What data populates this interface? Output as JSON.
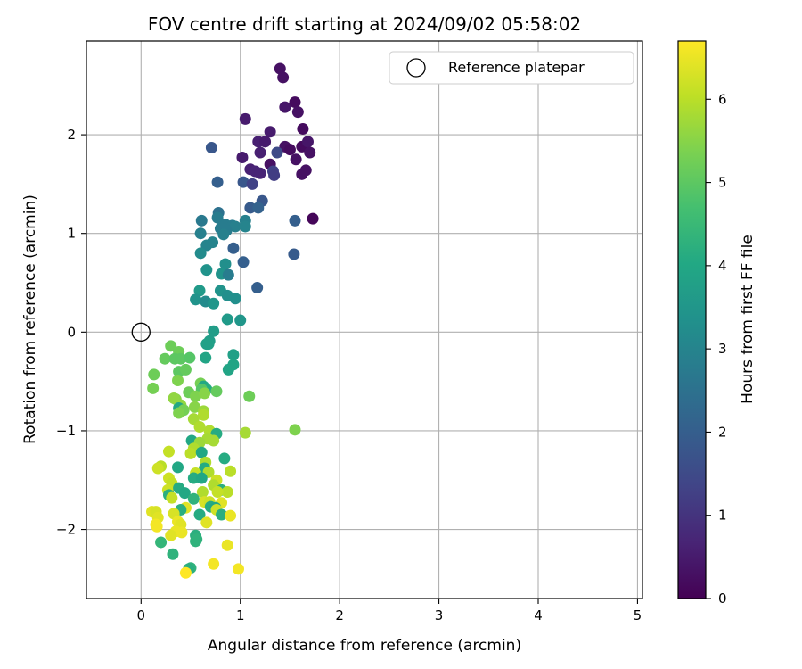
{
  "chart_data": {
    "type": "scatter",
    "title": "FOV centre drift starting at 2024/09/02 05:58:02",
    "xlabel": "Angular distance from reference (arcmin)",
    "ylabel": "Rotation from reference (arcmin)",
    "colorbar_label": "Hours from first FF file",
    "xlim": [
      -0.55,
      5.05
    ],
    "ylim": [
      -2.7,
      2.95
    ],
    "x_ticks": [
      0,
      1,
      2,
      3,
      4,
      5
    ],
    "x_tick_labels": [
      "0",
      "1",
      "2",
      "3",
      "4",
      "5"
    ],
    "y_ticks": [
      -2,
      -1,
      0,
      1,
      2
    ],
    "y_tick_labels": [
      "−2",
      "−1",
      "0",
      "1",
      "2"
    ],
    "colorbar_range": [
      0,
      6.7
    ],
    "colorbar_ticks": [
      0,
      1,
      2,
      3,
      4,
      5,
      6
    ],
    "colorbar_tick_labels": [
      "0",
      "1",
      "2",
      "3",
      "4",
      "5",
      "6"
    ],
    "colormap": "viridis",
    "grid": true,
    "legend": {
      "position": "top-right",
      "entries": [
        "Reference platepar"
      ]
    },
    "reference_point": {
      "x": 0,
      "y": 0
    },
    "points": [
      [
        1.4,
        2.67,
        0.3
      ],
      [
        1.43,
        2.58,
        0.3
      ],
      [
        1.45,
        2.28,
        0.4
      ],
      [
        1.55,
        2.33,
        0.2
      ],
      [
        1.58,
        2.23,
        0.3
      ],
      [
        1.05,
        2.16,
        0.5
      ],
      [
        1.63,
        2.06,
        0.2
      ],
      [
        1.3,
        2.03,
        0.5
      ],
      [
        1.18,
        1.93,
        0.6
      ],
      [
        1.25,
        1.93,
        0.5
      ],
      [
        1.45,
        1.88,
        0.3
      ],
      [
        1.5,
        1.85,
        0.2
      ],
      [
        1.62,
        1.88,
        0.2
      ],
      [
        1.68,
        1.93,
        0.4
      ],
      [
        0.71,
        1.87,
        1.8
      ],
      [
        1.37,
        1.82,
        1.5
      ],
      [
        1.2,
        1.82,
        0.6
      ],
      [
        1.02,
        1.77,
        0.5
      ],
      [
        1.56,
        1.75,
        0.3
      ],
      [
        1.7,
        1.82,
        0.3
      ],
      [
        1.3,
        1.7,
        0.3
      ],
      [
        1.1,
        1.65,
        0.6
      ],
      [
        1.15,
        1.63,
        0.7
      ],
      [
        1.2,
        1.61,
        0.7
      ],
      [
        1.33,
        1.63,
        1.3
      ],
      [
        1.34,
        1.59,
        1.2
      ],
      [
        1.62,
        1.6,
        0.3
      ],
      [
        1.66,
        1.64,
        0.3
      ],
      [
        1.03,
        1.52,
        1.8
      ],
      [
        1.12,
        1.5,
        1.3
      ],
      [
        0.77,
        1.52,
        2.0
      ],
      [
        1.22,
        1.33,
        1.8
      ],
      [
        1.1,
        1.26,
        1.9
      ],
      [
        1.18,
        1.26,
        2.1
      ],
      [
        0.78,
        1.21,
        2.5
      ],
      [
        0.61,
        1.13,
        2.7
      ],
      [
        0.77,
        1.16,
        2.8
      ],
      [
        1.05,
        1.13,
        2.9
      ],
      [
        1.55,
        1.13,
        2.0
      ],
      [
        1.73,
        1.15,
        0.1
      ],
      [
        0.85,
        1.09,
        2.8
      ],
      [
        0.92,
        1.08,
        2.8
      ],
      [
        0.95,
        1.07,
        2.9
      ],
      [
        1.05,
        1.07,
        3.0
      ],
      [
        0.86,
        1.03,
        2.8
      ],
      [
        0.8,
        1.05,
        2.8
      ],
      [
        0.6,
        1.0,
        2.9
      ],
      [
        0.83,
        0.99,
        2.9
      ],
      [
        0.72,
        0.91,
        3.0
      ],
      [
        0.66,
        0.88,
        3.0
      ],
      [
        0.93,
        0.85,
        2.0
      ],
      [
        0.6,
        0.8,
        3.2
      ],
      [
        1.54,
        0.79,
        1.9
      ],
      [
        1.03,
        0.71,
        2.0
      ],
      [
        0.85,
        0.69,
        3.3
      ],
      [
        0.66,
        0.63,
        3.4
      ],
      [
        0.81,
        0.59,
        3.4
      ],
      [
        0.88,
        0.58,
        2.8
      ],
      [
        1.17,
        0.45,
        2.0
      ],
      [
        0.59,
        0.42,
        3.6
      ],
      [
        0.8,
        0.42,
        3.4
      ],
      [
        0.87,
        0.37,
        3.3
      ],
      [
        0.55,
        0.33,
        3.4
      ],
      [
        0.95,
        0.34,
        3.3
      ],
      [
        0.65,
        0.31,
        3.2
      ],
      [
        0.73,
        0.29,
        3.5
      ],
      [
        0.87,
        0.13,
        3.6
      ],
      [
        1.0,
        0.12,
        3.5
      ],
      [
        0.73,
        0.01,
        3.7
      ],
      [
        0.69,
        -0.09,
        3.7
      ],
      [
        0.66,
        -0.12,
        3.8
      ],
      [
        0.68,
        -0.12,
        3.8
      ],
      [
        0.93,
        -0.23,
        3.8
      ],
      [
        0.3,
        -0.14,
        5.2
      ],
      [
        0.38,
        -0.2,
        5.2
      ],
      [
        0.24,
        -0.27,
        5.1
      ],
      [
        0.34,
        -0.27,
        5.0
      ],
      [
        0.4,
        -0.27,
        5.0
      ],
      [
        0.49,
        -0.26,
        4.9
      ],
      [
        0.65,
        -0.26,
        3.9
      ],
      [
        0.93,
        -0.33,
        3.9
      ],
      [
        0.88,
        -0.38,
        3.9
      ],
      [
        0.38,
        -0.4,
        5.0
      ],
      [
        0.45,
        -0.38,
        5.1
      ],
      [
        0.13,
        -0.43,
        5.2
      ],
      [
        0.37,
        -0.49,
        5.4
      ],
      [
        0.6,
        -0.52,
        5.3
      ],
      [
        0.63,
        -0.55,
        4.0
      ],
      [
        0.66,
        -0.58,
        4.1
      ],
      [
        0.61,
        -0.58,
        4.9
      ],
      [
        0.76,
        -0.6,
        5.1
      ],
      [
        0.48,
        -0.61,
        5.2
      ],
      [
        0.55,
        -0.65,
        5.4
      ],
      [
        0.12,
        -0.57,
        5.3
      ],
      [
        0.64,
        -0.62,
        5.5
      ],
      [
        1.09,
        -0.65,
        5.2
      ],
      [
        0.35,
        -0.68,
        5.5
      ],
      [
        0.33,
        -0.67,
        5.6
      ],
      [
        0.4,
        -0.74,
        5.6
      ],
      [
        0.38,
        -0.77,
        4.0
      ],
      [
        0.43,
        -0.79,
        5.3
      ],
      [
        0.54,
        -0.76,
        5.5
      ],
      [
        0.63,
        -0.8,
        5.7
      ],
      [
        0.63,
        -0.84,
        5.9
      ],
      [
        0.38,
        -0.82,
        5.4
      ],
      [
        0.53,
        -0.88,
        5.8
      ],
      [
        0.59,
        -0.96,
        5.9
      ],
      [
        0.69,
        -1.0,
        5.9
      ],
      [
        1.55,
        -0.99,
        5.4
      ],
      [
        1.05,
        -1.02,
        5.8
      ],
      [
        0.76,
        -1.03,
        4.1
      ],
      [
        0.67,
        -1.08,
        5.8
      ],
      [
        0.73,
        -1.1,
        5.8
      ],
      [
        0.51,
        -1.1,
        4.0
      ],
      [
        0.59,
        -1.12,
        5.7
      ],
      [
        0.53,
        -1.18,
        5.9
      ],
      [
        0.5,
        -1.23,
        6.0
      ],
      [
        0.61,
        -1.22,
        4.0
      ],
      [
        0.28,
        -1.21,
        6.1
      ],
      [
        0.84,
        -1.28,
        4.1
      ],
      [
        0.65,
        -1.32,
        5.9
      ],
      [
        0.2,
        -1.36,
        6.0
      ],
      [
        0.37,
        -1.37,
        4.0
      ],
      [
        0.64,
        -1.38,
        4.1
      ],
      [
        0.17,
        -1.38,
        6.2
      ],
      [
        0.9,
        -1.41,
        6.0
      ],
      [
        0.68,
        -1.42,
        5.9
      ],
      [
        0.55,
        -1.43,
        6.1
      ],
      [
        0.53,
        -1.48,
        4.1
      ],
      [
        0.28,
        -1.48,
        6.2
      ],
      [
        0.61,
        -1.48,
        4.0
      ],
      [
        0.76,
        -1.5,
        6.2
      ],
      [
        0.31,
        -1.53,
        6.1
      ],
      [
        0.73,
        -1.55,
        5.9
      ],
      [
        0.27,
        -1.6,
        6.2
      ],
      [
        0.81,
        -1.6,
        4.2
      ],
      [
        0.38,
        -1.58,
        4.1
      ],
      [
        0.44,
        -1.63,
        4.0
      ],
      [
        0.62,
        -1.62,
        5.9
      ],
      [
        0.87,
        -1.62,
        6.0
      ],
      [
        0.77,
        -1.62,
        6.1
      ],
      [
        0.28,
        -1.65,
        4.2
      ],
      [
        0.31,
        -1.68,
        6.1
      ],
      [
        0.53,
        -1.69,
        4.3
      ],
      [
        0.64,
        -1.72,
        6.3
      ],
      [
        0.81,
        -1.73,
        6.4
      ],
      [
        0.69,
        -1.72,
        6.2
      ],
      [
        0.7,
        -1.77,
        4.1
      ],
      [
        0.45,
        -1.78,
        6.4
      ],
      [
        0.75,
        -1.78,
        4.0
      ],
      [
        0.4,
        -1.8,
        4.2
      ],
      [
        0.76,
        -1.8,
        6.2
      ],
      [
        0.11,
        -1.82,
        6.4
      ],
      [
        0.15,
        -1.82,
        6.3
      ],
      [
        0.33,
        -1.84,
        6.3
      ],
      [
        0.59,
        -1.85,
        4.1
      ],
      [
        0.81,
        -1.85,
        4.2
      ],
      [
        0.9,
        -1.86,
        6.5
      ],
      [
        0.17,
        -1.88,
        6.4
      ],
      [
        0.37,
        -1.92,
        6.5
      ],
      [
        0.66,
        -1.93,
        6.4
      ],
      [
        0.4,
        -1.95,
        6.4
      ],
      [
        0.15,
        -1.95,
        6.6
      ],
      [
        0.16,
        -1.97,
        6.6
      ],
      [
        0.35,
        -2.02,
        6.5
      ],
      [
        0.41,
        -2.03,
        6.5
      ],
      [
        0.3,
        -2.06,
        6.4
      ],
      [
        0.55,
        -2.06,
        4.2
      ],
      [
        0.56,
        -2.1,
        4.3
      ],
      [
        0.55,
        -2.12,
        4.3
      ],
      [
        0.2,
        -2.13,
        4.4
      ],
      [
        0.87,
        -2.16,
        6.5
      ],
      [
        0.32,
        -2.25,
        4.3
      ],
      [
        0.73,
        -2.35,
        6.6
      ],
      [
        0.5,
        -2.39,
        4.3
      ],
      [
        0.48,
        -2.4,
        4.2
      ],
      [
        0.98,
        -2.4,
        6.6
      ],
      [
        0.45,
        -2.44,
        6.7
      ]
    ]
  }
}
